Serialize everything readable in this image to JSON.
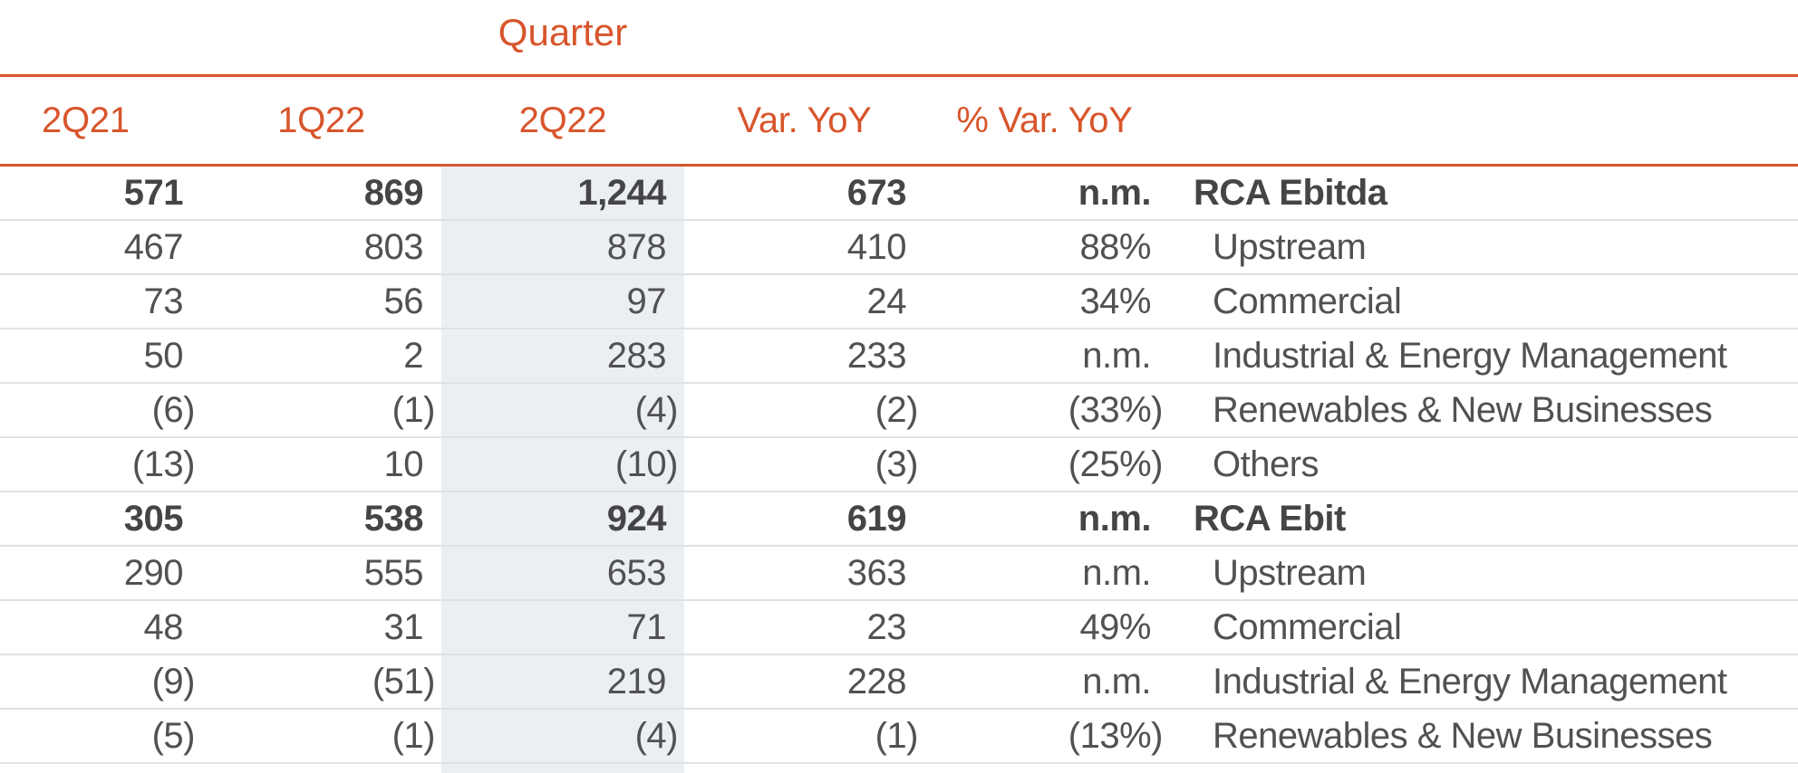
{
  "colors": {
    "accent": "#D8552B",
    "column_highlight": "#EBEFF2",
    "row_separator": "#DCE3E7",
    "text": "#515153",
    "text_bold": "#454547",
    "background": "#FFFFFF"
  },
  "chart_data": {
    "type": "table",
    "title": "Quarter",
    "highlighted_column": "2Q22",
    "columns": [
      "2Q21",
      "1Q22",
      "2Q22",
      "Var. YoY",
      "% Var. YoY"
    ],
    "rows": [
      {
        "values": [
          "571",
          "869",
          "1,244",
          "673",
          "n.m."
        ],
        "label": "RCA Ebitda",
        "bold": true
      },
      {
        "values": [
          "467",
          "803",
          "878",
          "410",
          "88%"
        ],
        "label": "Upstream",
        "bold": false
      },
      {
        "values": [
          "73",
          "56",
          "97",
          "24",
          "34%"
        ],
        "label": "Commercial",
        "bold": false
      },
      {
        "values": [
          "50",
          "2",
          "283",
          "233",
          "n.m."
        ],
        "label": "Industrial & Energy Management",
        "bold": false
      },
      {
        "values": [
          "(6)",
          "(1)",
          "(4)",
          "(2)",
          "(33%)"
        ],
        "label": "Renewables & New Businesses",
        "bold": false
      },
      {
        "values": [
          "(13)",
          "10",
          "(10)",
          "(3)",
          "(25%)"
        ],
        "label": "Others",
        "bold": false
      },
      {
        "values": [
          "305",
          "538",
          "924",
          "619",
          "n.m."
        ],
        "label": "RCA Ebit",
        "bold": true
      },
      {
        "values": [
          "290",
          "555",
          "653",
          "363",
          "n.m."
        ],
        "label": "Upstream",
        "bold": false
      },
      {
        "values": [
          "48",
          "31",
          "71",
          "23",
          "49%"
        ],
        "label": "Commercial",
        "bold": false
      },
      {
        "values": [
          "(9)",
          "(51)",
          "219",
          "228",
          "n.m."
        ],
        "label": "Industrial & Energy Management",
        "bold": false
      },
      {
        "values": [
          "(5)",
          "(1)",
          "(4)",
          "(1)",
          "(13%)"
        ],
        "label": "Renewables & New Businesses",
        "bold": false
      }
    ]
  }
}
